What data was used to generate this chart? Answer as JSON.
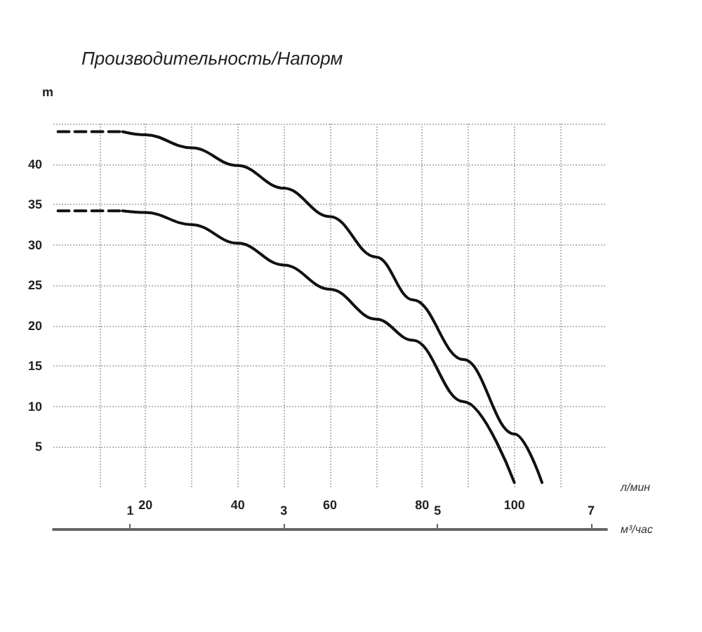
{
  "chart_data": {
    "type": "line",
    "title": "Производительность/Напорм",
    "ylabel": "m",
    "xlabel": "л/мин",
    "x2label": "м³/час",
    "xlim": [
      0,
      120
    ],
    "xticks": [
      {
        "value": 10,
        "label": null
      },
      20,
      {
        "value": 30,
        "label": null
      },
      40,
      {
        "value": 50,
        "label": null
      },
      60,
      {
        "value": 70,
        "label": null
      },
      80,
      {
        "value": 90,
        "label": null
      },
      100,
      {
        "value": 110,
        "label": null
      }
    ],
    "ylim": [
      0,
      45
    ],
    "yticks": [
      5,
      10,
      15,
      20,
      25,
      30,
      35,
      40,
      {
        "value": 45,
        "label": null
      }
    ],
    "x2lim": [
      0,
      7.2
    ],
    "x2ticks": [
      1,
      3,
      5,
      7
    ],
    "grid": true,
    "marker": "none",
    "series": [
      {
        "color": "#111111",
        "line_style": "dashed",
        "x": [
          1,
          15
        ],
        "values": [
          44,
          44
        ]
      },
      {
        "color": "#111111",
        "line_style": "solid",
        "x": [
          15,
          20,
          30,
          40,
          50,
          60,
          70,
          78,
          89,
          100,
          106
        ],
        "values": [
          44,
          43.6,
          42,
          39.8,
          37,
          33.5,
          28.5,
          23.2,
          15.8,
          6.6,
          0.6
        ]
      },
      {
        "color": "#111111",
        "line_style": "dashed",
        "x": [
          1,
          15
        ],
        "values": [
          34.2,
          34.2
        ]
      },
      {
        "color": "#111111",
        "line_style": "solid",
        "x": [
          15,
          20,
          30,
          40,
          50,
          60,
          70,
          78,
          89,
          100
        ],
        "values": [
          34.2,
          34,
          32.5,
          30.2,
          27.5,
          24.5,
          20.8,
          18.2,
          10.6,
          0.6
        ]
      }
    ]
  }
}
